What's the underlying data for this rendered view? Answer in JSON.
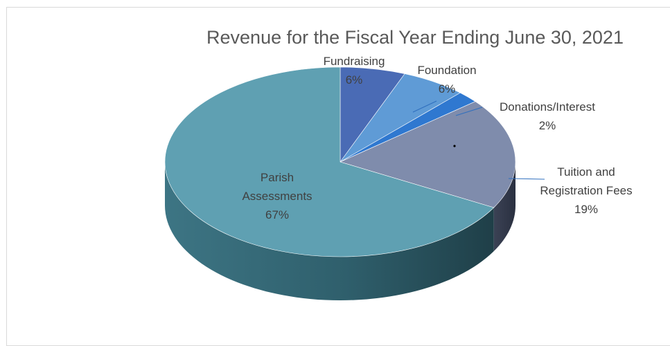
{
  "chart_data": {
    "type": "pie",
    "style": "3d",
    "title": "Revenue for the Fiscal Year Ending June 30, 2021",
    "slices": [
      {
        "name": "Fundraising",
        "value": 6,
        "label": "6%",
        "color": "#4a6bb5"
      },
      {
        "name": "Foundation",
        "value": 6,
        "label": "6%",
        "color": "#5f9bd6"
      },
      {
        "name": "Donations/Interest",
        "value": 2,
        "label": "2%",
        "color": "#2f78d0"
      },
      {
        "name": "Tuition and Registration Fees",
        "value": 19,
        "label": "19%",
        "color": "#7f8cac"
      },
      {
        "name": "Parish Assessments",
        "value": 67,
        "label": "67%",
        "color": "#5fa0b2"
      }
    ],
    "label_lines": {
      "Fundraising": [
        "Fundraising",
        "6%"
      ],
      "Foundation": [
        "Foundation",
        "6%"
      ],
      "Donations/Interest": [
        "Donations/Interest",
        "2%"
      ],
      "Tuition and Registration Fees": [
        "Tuition and",
        "Registration Fees",
        "19%"
      ],
      "Parish Assessments": [
        "Parish",
        "Assessments",
        "67%"
      ]
    },
    "legend": "none"
  }
}
